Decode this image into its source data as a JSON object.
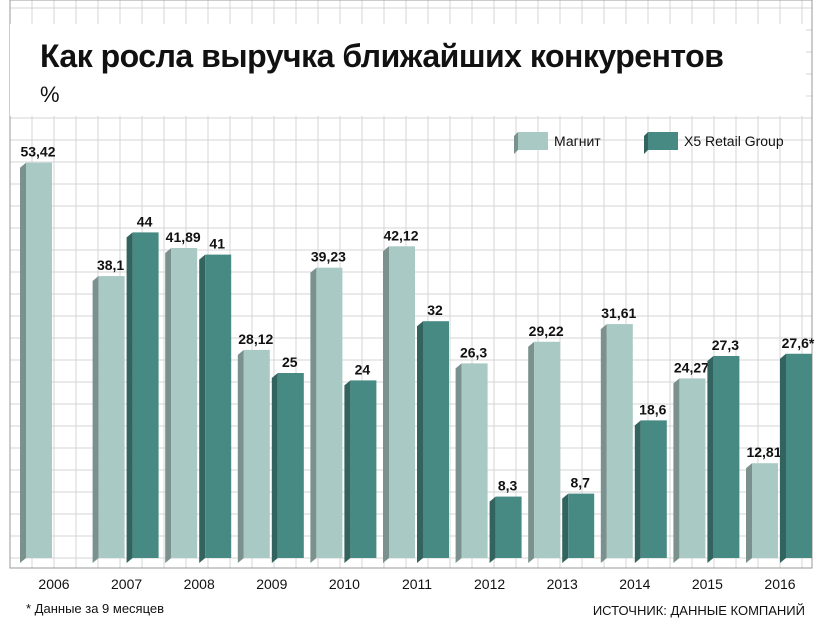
{
  "chart_data": {
    "type": "bar",
    "title": "Как росла выручка ближайших конкурентов",
    "unit": "%",
    "categories": [
      "2006",
      "2007",
      "2008",
      "2009",
      "2010",
      "2011",
      "2012",
      "2013",
      "2014",
      "2015",
      "2016"
    ],
    "series": [
      {
        "name": "Магнит",
        "values": [
          53.42,
          38.1,
          41.89,
          28.12,
          39.23,
          42.12,
          26.3,
          29.22,
          31.61,
          24.27,
          12.81
        ],
        "labels": [
          "53,42",
          "38,1",
          "41,89",
          "28,12",
          "39,23",
          "42,12",
          "26,3",
          "29,22",
          "31,61",
          "24,27",
          "12,81"
        ],
        "color": "#a9c9c4"
      },
      {
        "name": "X5 Retail Group",
        "values": [
          null,
          44,
          41,
          25,
          24,
          32,
          8.3,
          8.7,
          18.6,
          27.3,
          27.6
        ],
        "labels": [
          null,
          "44",
          "41",
          "25",
          "24",
          "32",
          "8,3",
          "8,7",
          "18,6",
          "27,3",
          "27,6*"
        ],
        "color": "#478a83"
      }
    ],
    "ylim": [
      0,
      60
    ],
    "grid": true,
    "legend": "top-right"
  },
  "footnote": "* Данные за 9 месяцев",
  "source": "ИСТОЧНИК: ДАННЫЕ КОМПАНИЙ"
}
